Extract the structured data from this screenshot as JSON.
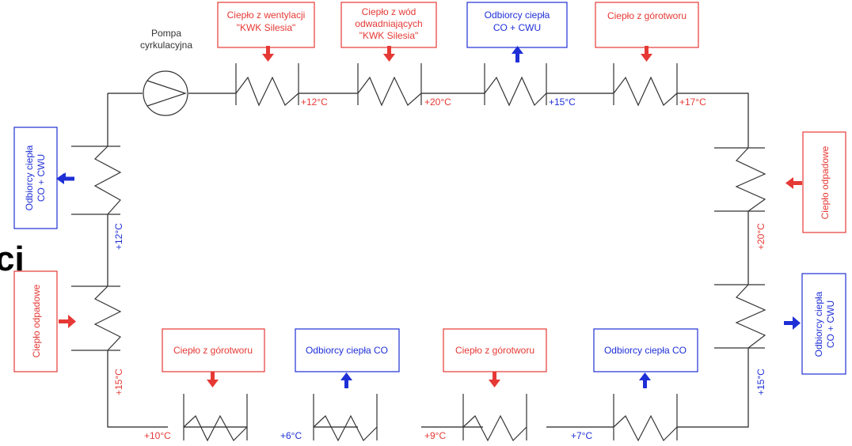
{
  "pump_label_line1": "Pompa",
  "pump_label_line2": "cyrkulacyjna",
  "fragment_text": "ci",
  "colors": {
    "source": "#e53935",
    "consumer": "#1f2fd6",
    "line": "#222222"
  },
  "boxes": {
    "top_vent_l1": "Ciepło z wentylacji",
    "top_vent_l2": "\"KWK Silesia\"",
    "top_water_l1": "Ciepło z wód",
    "top_water_l2": "odwadniających",
    "top_water_l3": "\"KWK Silesia\"",
    "top_cons_l1": "Odbiorcy ciepła",
    "top_cons_l2": "CO + CWU",
    "top_rock": "Ciepło z górotworu",
    "left_cons_l1": "Odbiorcy ciepła",
    "left_cons_l2": "CO + CWU",
    "left_waste": "Ciepło odpadowe",
    "right_waste": "Ciepło odpadowe",
    "right_cons_l1": "Odbiorcy ciepła",
    "right_cons_l2": "CO + CWU",
    "bot_rock1": "Ciepło z górotworu",
    "bot_cons1": "Odbiorcy ciepła CO",
    "bot_rock2": "Ciepło z górotworu",
    "bot_cons2": "Odbiorcy ciepła CO"
  },
  "temps": {
    "top1": "+12°C",
    "top2": "+20°C",
    "top3": "+15°C",
    "top4": "+17°C",
    "left1": "+12°C",
    "left2": "+15°C",
    "right1": "+20°C",
    "right2": "+15°C",
    "bot1": "+10°C",
    "bot2": "+6°C",
    "bot3": "+9°C",
    "bot4": "+7°C"
  }
}
